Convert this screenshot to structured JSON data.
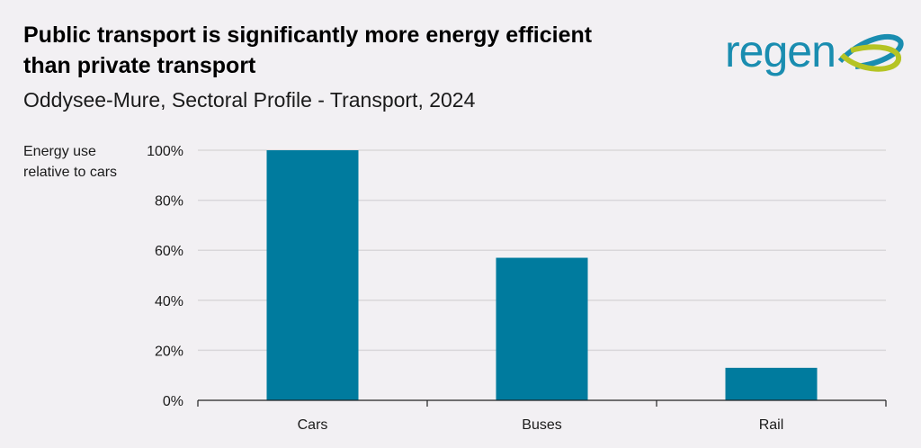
{
  "header": {
    "title": "Public transport is significantly more energy efficient than private transport",
    "subtitle": "Oddysee-Mure, Sectoral Profile - Transport, 2024",
    "logo_text": "regen"
  },
  "colors": {
    "bar": "#007b9e",
    "background": "#f2f0f3",
    "logo_blue": "#1a8db0",
    "logo_green": "#b5c424"
  },
  "chart_data": {
    "type": "bar",
    "title": "Public transport is significantly more energy efficient than private transport",
    "subtitle": "Oddysee-Mure, Sectoral Profile - Transport, 2024",
    "ylabel": "Energy use relative to cars",
    "xlabel": "",
    "categories": [
      "Cars",
      "Buses",
      "Rail"
    ],
    "values": [
      100,
      57,
      13
    ],
    "ylim": [
      0,
      100
    ],
    "yticks": [
      0,
      20,
      40,
      60,
      80,
      100
    ],
    "ytick_labels": [
      "0%",
      "20%",
      "40%",
      "60%",
      "80%",
      "100%"
    ],
    "grid": true,
    "legend": "none"
  }
}
